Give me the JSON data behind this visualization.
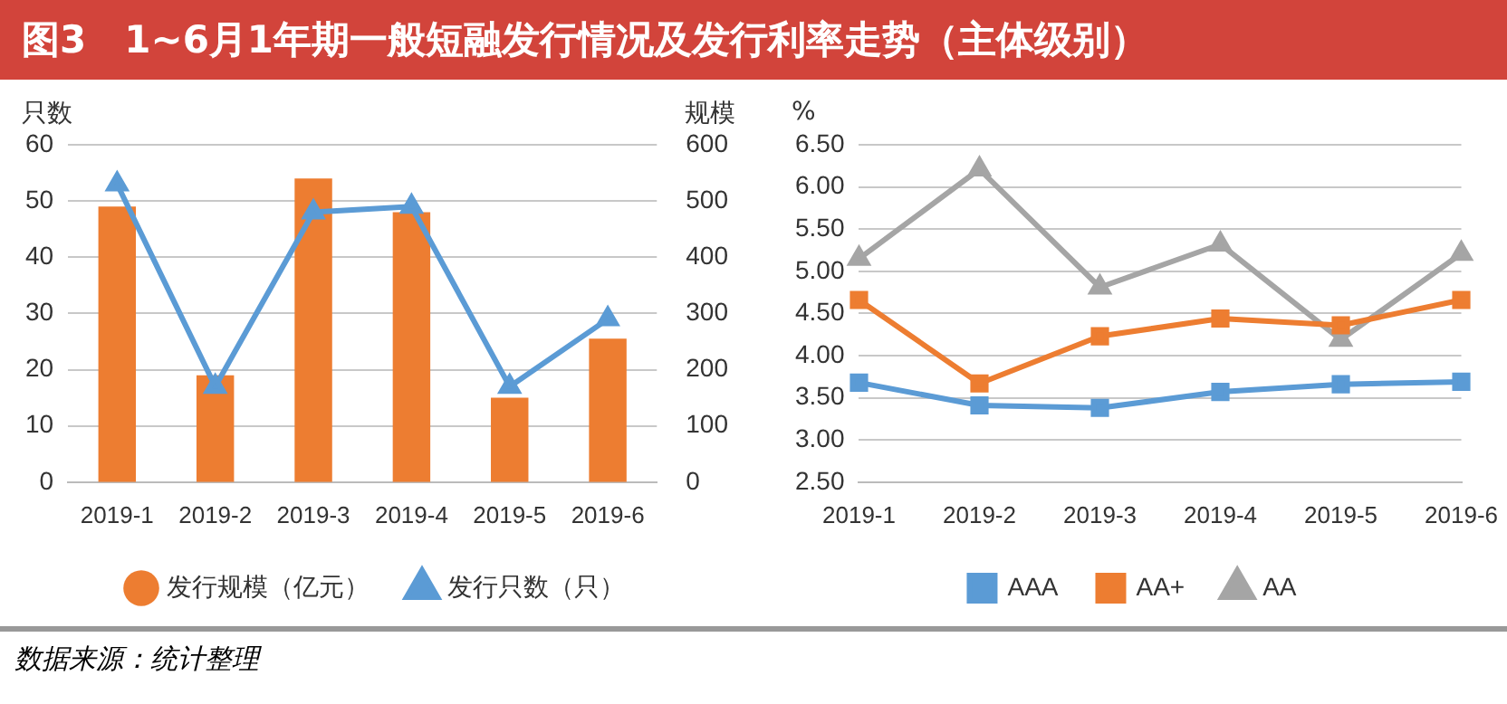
{
  "chart_data": [
    {
      "type": "bar",
      "title": "图3　1~6月1年期一般短融发行情况及发行利率走势（主体级别）",
      "ylabel": "只数",
      "y2label": "规模",
      "categories": [
        "2019-1",
        "2019-2",
        "2019-3",
        "2019-4",
        "2019-5",
        "2019-6"
      ],
      "series": [
        {
          "name": "发行规模（亿元）",
          "type": "bar",
          "axis": "y2",
          "color": "#ed7d31",
          "values": [
            490,
            190,
            540,
            480,
            150,
            255
          ]
        },
        {
          "name": "发行只数（只）",
          "type": "line",
          "axis": "y",
          "color": "#5b9bd5",
          "marker": "triangle",
          "values": [
            53,
            17,
            48,
            49,
            17,
            29
          ]
        }
      ],
      "ylim": [
        0,
        60
      ],
      "yticks": [
        0,
        10,
        20,
        30,
        40,
        50,
        60
      ],
      "y2lim": [
        0,
        600
      ],
      "y2ticks": [
        0,
        100,
        200,
        300,
        400,
        500,
        600
      ],
      "grid": "y",
      "legend": "bottom",
      "annotations": [
        "数据来源：统计整理"
      ]
    },
    {
      "type": "line",
      "ylabel": "%",
      "categories": [
        "2019-1",
        "2019-2",
        "2019-3",
        "2019-4",
        "2019-5",
        "2019-6"
      ],
      "series": [
        {
          "name": "AAA",
          "color": "#5b9bd5",
          "marker": "square",
          "values": [
            3.68,
            3.41,
            3.38,
            3.57,
            3.66,
            3.69
          ]
        },
        {
          "name": "AA+",
          "color": "#ed7d31",
          "marker": "square",
          "values": [
            4.66,
            3.67,
            4.23,
            4.44,
            4.36,
            4.66
          ]
        },
        {
          "name": "AA",
          "color": "#a5a5a5",
          "marker": "triangle",
          "values": [
            5.15,
            6.21,
            4.81,
            5.32,
            4.19,
            5.21
          ]
        }
      ],
      "ylim": [
        2.5,
        6.5
      ],
      "yticks": [
        {
          "value": 2.5,
          "label": "2.50"
        },
        {
          "value": 3,
          "label": "3.00"
        },
        {
          "value": 3.5,
          "label": "3.50"
        },
        {
          "value": 4,
          "label": "4.00"
        },
        {
          "value": 4.5,
          "label": "4.50"
        },
        {
          "value": 5,
          "label": "5.00"
        },
        {
          "value": 5.5,
          "label": "5.50"
        },
        {
          "value": 6,
          "label": "6.00"
        },
        {
          "value": 6.5,
          "label": "6.50"
        }
      ],
      "grid": "y",
      "legend": "bottom"
    }
  ]
}
